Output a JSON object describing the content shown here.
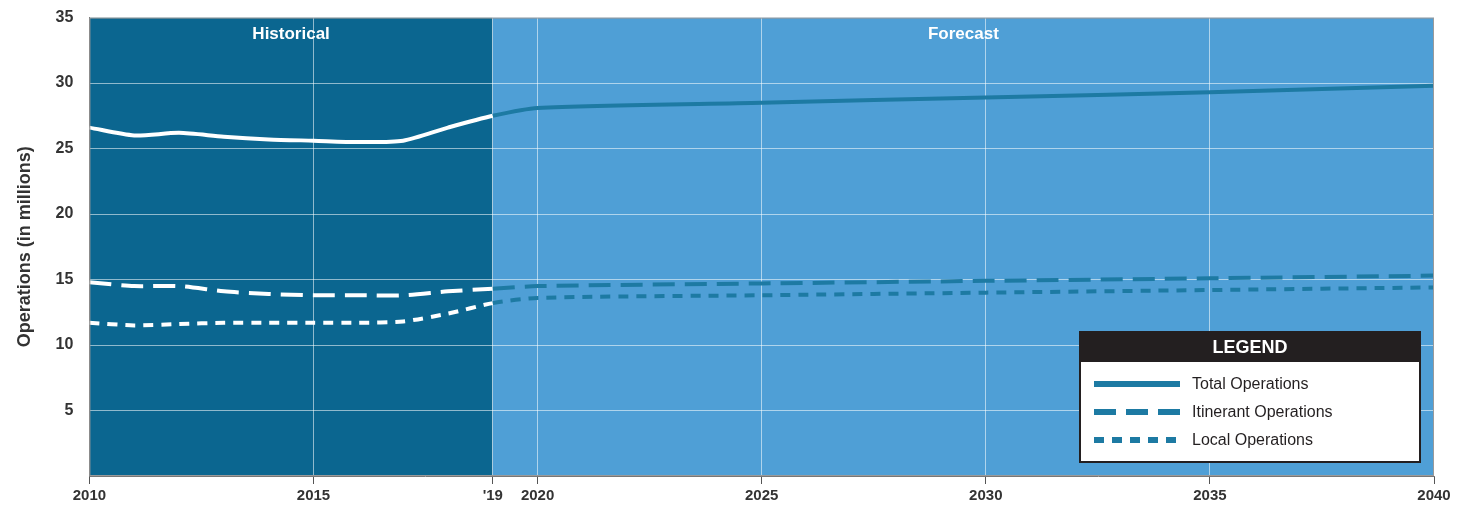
{
  "chart_data": {
    "type": "line",
    "ylabel": "Operations (in millions)",
    "x": [
      2010,
      2011,
      2012,
      2013,
      2014,
      2015,
      2016,
      2017,
      2018,
      2019,
      2020,
      2025,
      2030,
      2035,
      2040
    ],
    "series": [
      {
        "name": "Total Operations",
        "color": "#1d7aa3",
        "line_style": "solid",
        "values": [
          26.6,
          26.0,
          26.2,
          25.9,
          25.7,
          25.6,
          25.5,
          25.6,
          26.6,
          27.5,
          28.1,
          28.5,
          28.9,
          29.3,
          29.8
        ]
      },
      {
        "name": "Itinerant Operations",
        "color": "#1d7aa3",
        "line_style": "dashed",
        "values": [
          14.8,
          14.5,
          14.5,
          14.1,
          13.9,
          13.8,
          13.8,
          13.8,
          14.1,
          14.3,
          14.5,
          14.7,
          14.9,
          15.1,
          15.3
        ]
      },
      {
        "name": "Local Operations",
        "color": "#1d7aa3",
        "line_style": "dotted",
        "values": [
          11.7,
          11.5,
          11.6,
          11.7,
          11.7,
          11.7,
          11.7,
          11.8,
          12.4,
          13.2,
          13.6,
          13.8,
          14.0,
          14.2,
          14.4
        ]
      }
    ],
    "xlim": [
      2010,
      2040
    ],
    "xticks": [
      2010,
      2015,
      {
        "value": 2019,
        "label": "'19"
      },
      2020,
      2025,
      2030,
      2035,
      2040
    ],
    "ylim": [
      0,
      35
    ],
    "yticks": [
      5,
      10,
      15,
      20,
      25,
      30,
      35
    ],
    "grid": true,
    "legend": "lower right",
    "legend_title": "LEGEND",
    "annotations": [
      {
        "text": "Historical",
        "x_range": [
          2010,
          2019
        ]
      },
      {
        "text": "Forecast",
        "x_range": [
          2019,
          2040
        ]
      }
    ]
  }
}
